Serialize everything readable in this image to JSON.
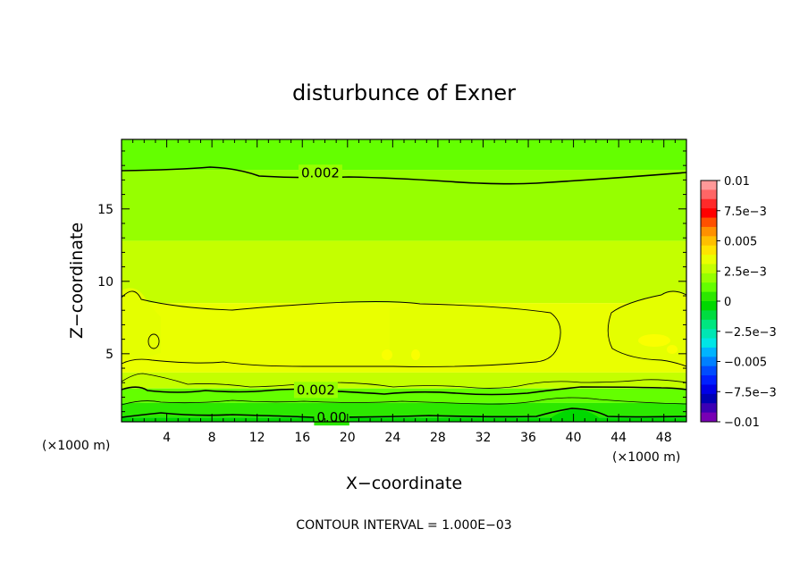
{
  "chart_data": {
    "type": "contour",
    "title": "disturbunce of Exner",
    "xlabel": "X−coordinate",
    "ylabel": "Z−coordinate",
    "x_unit_left": "(×1000 m)",
    "x_unit_right": "(×1000 m)",
    "xlim": [
      0,
      50
    ],
    "ylim": [
      0.3,
      19.8
    ],
    "x_ticks": [
      4,
      8,
      12,
      16,
      20,
      24,
      28,
      32,
      36,
      40,
      44,
      48
    ],
    "x_tick_labels": [
      "4",
      "8",
      "12",
      "16",
      "20",
      "24",
      "28",
      "32",
      "36",
      "40",
      "44",
      "48"
    ],
    "y_ticks": [
      5,
      10,
      15
    ],
    "y_tick_labels": [
      "5",
      "10",
      "15"
    ],
    "contour_interval_text": "CONTOUR INTERVAL = 1.000E−03",
    "contour_labels": [
      {
        "text": "0.002",
        "x": 17.6,
        "z": 17.5
      },
      {
        "text": "0.002",
        "x": 17.2,
        "z": 2.5
      },
      {
        "text": "0.00",
        "x": 18.6,
        "z": 0.6
      }
    ],
    "fill_bands": [
      {
        "z_from": 17.7,
        "z_to": 19.8,
        "value": 0.0015
      },
      {
        "z_from": 12.8,
        "z_to": 17.7,
        "value": 0.002
      },
      {
        "z_from": 8.5,
        "z_to": 12.8,
        "value": 0.0028
      },
      {
        "z_from": 3.7,
        "z_to": 8.5,
        "value": 0.0035
      },
      {
        "z_from": 2.6,
        "z_to": 3.7,
        "value": 0.0027
      },
      {
        "z_from": 1.6,
        "z_to": 2.6,
        "value": 0.0015
      },
      {
        "z_from": 0.6,
        "z_to": 1.6,
        "value": 0.0005
      },
      {
        "z_from": 0.3,
        "z_to": 0.6,
        "value": -0.0002
      }
    ],
    "colorbar": {
      "labels": [
        "0.01",
        "7.5e−3",
        "0.005",
        "2.5e−3",
        "0",
        "−2.5e−3",
        "−0.005",
        "−7.5e−3",
        "−0.01"
      ],
      "min": -0.01,
      "max": 0.01,
      "colors_top_to_bottom": [
        "#ff9999",
        "#ff6666",
        "#ff2a2a",
        "#ff0000",
        "#ff5000",
        "#ff9000",
        "#ffbf00",
        "#ffe400",
        "#eaff00",
        "#c4ff00",
        "#96ff00",
        "#64ff00",
        "#2ce800",
        "#00d800",
        "#00dc40",
        "#00e680",
        "#00e6b4",
        "#00e6e6",
        "#00b4ff",
        "#0080ff",
        "#004cff",
        "#0020ff",
        "#0000e6",
        "#0000b4",
        "#3c00b4",
        "#7800b4"
      ]
    }
  }
}
